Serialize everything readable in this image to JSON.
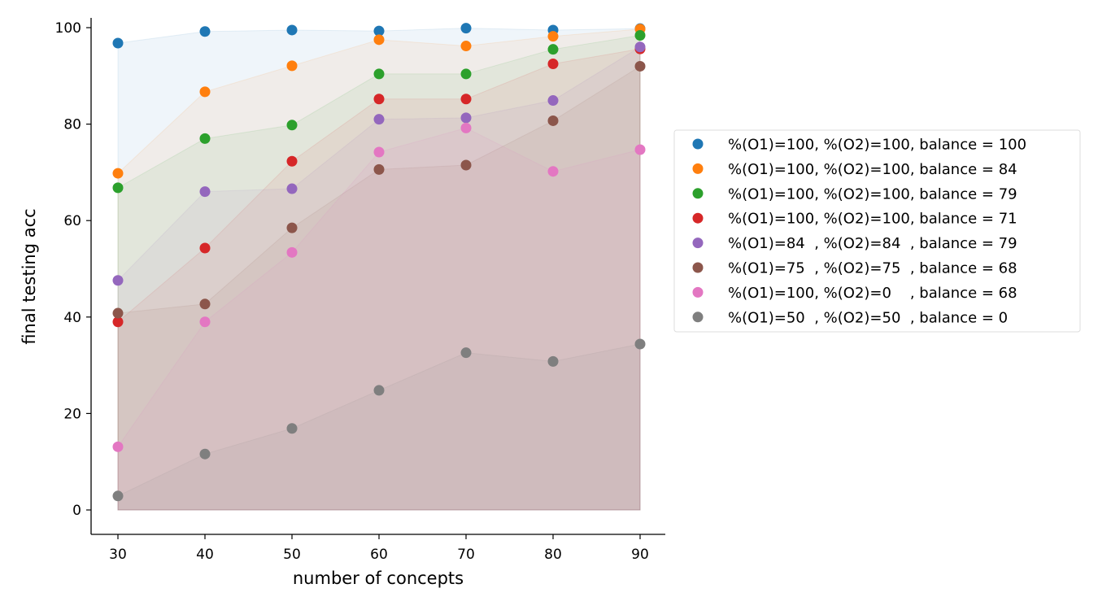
{
  "chart_data": {
    "type": "scatter",
    "title": "",
    "xlabel": "number of concepts",
    "ylabel": "final testing acc",
    "x": [
      30,
      40,
      50,
      60,
      70,
      80,
      90
    ],
    "xlim": [
      27,
      93
    ],
    "ylim": [
      -5,
      102
    ],
    "xticks": [
      "30",
      "40",
      "50",
      "60",
      "70",
      "80",
      "90"
    ],
    "yticks": [
      "0",
      "20",
      "40",
      "60",
      "80",
      "100"
    ],
    "legend_position": "center-right",
    "fill_between_baseline": 0,
    "grid": false,
    "series": [
      {
        "name": "%(O1)=100, %(O2)=100, balance = 100",
        "color": "#1f77b4",
        "values": [
          96.8,
          99.2,
          99.5,
          99.3,
          99.9,
          99.5,
          99.8
        ]
      },
      {
        "name": "%(O1)=100, %(O2)=100, balance = 84",
        "color": "#ff7f0e",
        "values": [
          69.8,
          86.7,
          92.1,
          97.5,
          96.2,
          98.2,
          99.7
        ]
      },
      {
        "name": "%(O1)=100, %(O2)=100, balance = 79",
        "color": "#2ca02c",
        "values": [
          66.8,
          77.0,
          79.8,
          90.4,
          90.4,
          95.5,
          98.4
        ]
      },
      {
        "name": "%(O1)=100, %(O2)=100, balance = 71",
        "color": "#d62728",
        "values": [
          39.0,
          54.3,
          72.3,
          85.2,
          85.2,
          92.5,
          95.6
        ]
      },
      {
        "name": "%(O1)=84  , %(O2)=84  , balance = 79",
        "color": "#9467bd",
        "values": [
          47.6,
          66.0,
          66.6,
          81.0,
          81.3,
          84.9,
          96.0
        ]
      },
      {
        "name": "%(O1)=75  , %(O2)=75  , balance = 68",
        "color": "#8c564b",
        "values": [
          40.8,
          42.7,
          58.5,
          70.6,
          71.5,
          80.7,
          92.0
        ]
      },
      {
        "name": "%(O1)=100, %(O2)=0    , balance = 68",
        "color": "#e377c2",
        "values": [
          13.1,
          39.0,
          53.4,
          74.2,
          79.2,
          70.2,
          74.7
        ]
      },
      {
        "name": "%(O1)=50  , %(O2)=50  , balance = 0",
        "color": "#7f7f7f",
        "values": [
          2.9,
          11.6,
          16.9,
          24.8,
          32.6,
          30.8,
          34.4
        ]
      }
    ]
  }
}
